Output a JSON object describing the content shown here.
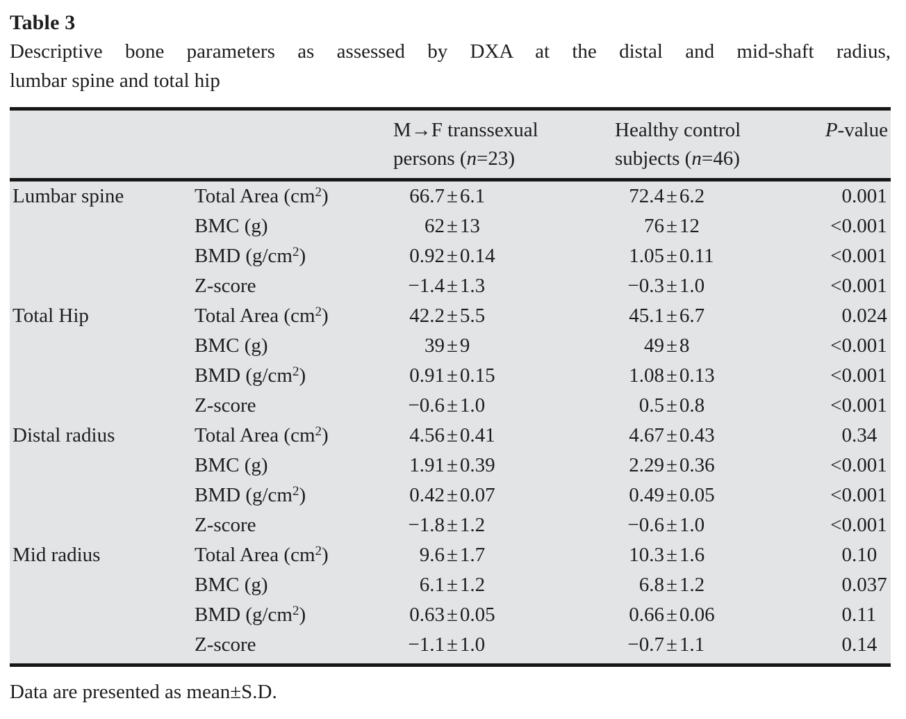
{
  "table": {
    "label": "Table 3",
    "caption_line1": "Descriptive bone parameters as assessed by DXA at the distal and mid-shaft radius,",
    "caption_line2": "lumbar spine and total hip",
    "footnote": "Data are presented as mean±S.D.",
    "colors": {
      "table_background": "#e3e4e6",
      "rule": "#171717",
      "text": "#1d1d1d",
      "page_background": "#ffffff"
    },
    "header": {
      "mf": {
        "line1": "M→F transsexual",
        "line2_pre": "persons (",
        "n_italic": "n",
        "line2_post": "=23)"
      },
      "hc": {
        "line1": "Healthy control",
        "line2_pre": "subjects (",
        "n_italic": "n",
        "line2_post": "=46)"
      },
      "p": {
        "italic": "P",
        "rest": "-value"
      }
    },
    "sections": [
      {
        "region": "Lumbar spine",
        "rows": [
          {
            "param": {
              "base": "Total Area (cm",
              "sup": "2",
              "close": ")"
            },
            "mf": "66.7±6.1",
            "hc": "72.4±6.2",
            "p": "0.001"
          },
          {
            "param": {
              "base": "BMC (g)"
            },
            "mf": "62±13",
            "hc": "76±12",
            "p": "<0.001"
          },
          {
            "param": {
              "base": "BMD (g/cm",
              "sup": "2",
              "close": ")"
            },
            "mf": "0.92±0.14",
            "hc": "1.05±0.11",
            "p": "<0.001"
          },
          {
            "param": {
              "base": "Z-score"
            },
            "mf": "−1.4±1.3",
            "hc": "−0.3±1.0",
            "p": "<0.001"
          }
        ]
      },
      {
        "region": "Total Hip",
        "rows": [
          {
            "param": {
              "base": "Total Area (cm",
              "sup": "2",
              "close": ")"
            },
            "mf": "42.2±5.5",
            "hc": "45.1±6.7",
            "p": "0.024"
          },
          {
            "param": {
              "base": "BMC (g)"
            },
            "mf": "39±9",
            "hc": "49±8",
            "p": "<0.001"
          },
          {
            "param": {
              "base": "BMD (g/cm",
              "sup": "2",
              "close": ")"
            },
            "mf": "0.91±0.15",
            "hc": "1.08±0.13",
            "p": "<0.001"
          },
          {
            "param": {
              "base": "Z-score"
            },
            "mf": "−0.6±1.0",
            "hc": "0.5±0.8",
            "p": "<0.001"
          }
        ]
      },
      {
        "region": "Distal radius",
        "rows": [
          {
            "param": {
              "base": "Total Area (cm",
              "sup": "2",
              "close": ")"
            },
            "mf": "4.56±0.41",
            "hc": "4.67±0.43",
            "p": "0.34"
          },
          {
            "param": {
              "base": "BMC (g)"
            },
            "mf": "1.91±0.39",
            "hc": "2.29±0.36",
            "p": "<0.001"
          },
          {
            "param": {
              "base": "BMD (g/cm",
              "sup": "2",
              "close": ")"
            },
            "mf": "0.42±0.07",
            "hc": "0.49±0.05",
            "p": "<0.001"
          },
          {
            "param": {
              "base": "Z-score"
            },
            "mf": "−1.8±1.2",
            "hc": "−0.6±1.0",
            "p": "<0.001"
          }
        ]
      },
      {
        "region": "Mid radius",
        "rows": [
          {
            "param": {
              "base": "Total Area (cm",
              "sup": "2",
              "close": ")"
            },
            "mf": "9.6±1.7",
            "hc": "10.3±1.6",
            "p": "0.10"
          },
          {
            "param": {
              "base": "BMC (g)"
            },
            "mf": "6.1±1.2",
            "hc": "6.8±1.2",
            "p": "0.037"
          },
          {
            "param": {
              "base": "BMD (g/cm",
              "sup": "2",
              "close": ")"
            },
            "mf": "0.63±0.05",
            "hc": "0.66±0.06",
            "p": "0.11"
          },
          {
            "param": {
              "base": "Z-score"
            },
            "mf": "−1.1±1.0",
            "hc": "−0.7±1.1",
            "p": "0.14"
          }
        ]
      }
    ]
  }
}
